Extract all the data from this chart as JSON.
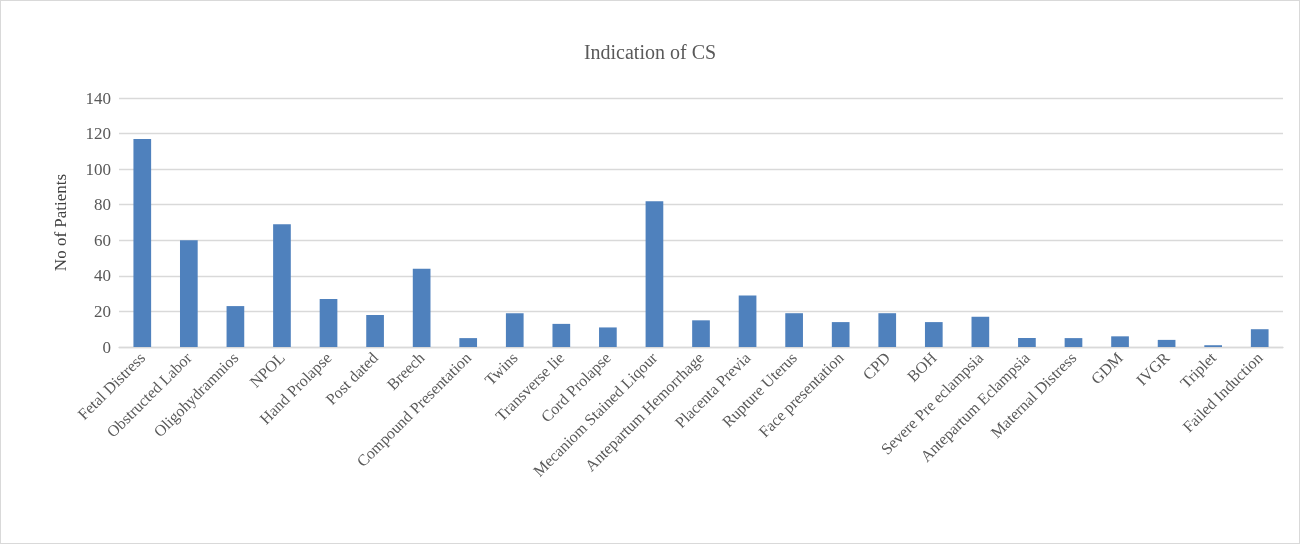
{
  "chart_data": {
    "type": "bar",
    "title": "Indication of CS",
    "ylabel": "No of Patients",
    "categories": [
      "Fetal Distress",
      "Obstructed Labor",
      "Oligohydramnios",
      "NPOL",
      "Hand Prolapse",
      "Post dated",
      "Breech",
      "Compound Presentation",
      "Twins",
      "Transverse lie",
      "Cord Prolapse",
      "Mecaniom Stained Liqour",
      "Antepartum Hemorrhage",
      "Placenta Previa",
      "Rupture Uterus",
      "Face presentation",
      "CPD",
      "BOH",
      "Severe Pre eclampsia",
      "Antepartum Eclampsia",
      "Maternal Distress",
      "GDM",
      "IVGR",
      "Triplet",
      "Failed Induction"
    ],
    "values": [
      117,
      60,
      23,
      69,
      27,
      18,
      44,
      5,
      19,
      13,
      11,
      82,
      15,
      29,
      19,
      14,
      19,
      14,
      17,
      5,
      5,
      6,
      4,
      1,
      10
    ],
    "color": "#4f81bd",
    "ylim": [
      0,
      140
    ],
    "yticks": [
      0,
      20,
      40,
      60,
      80,
      100,
      120,
      140
    ],
    "grid": "y"
  }
}
